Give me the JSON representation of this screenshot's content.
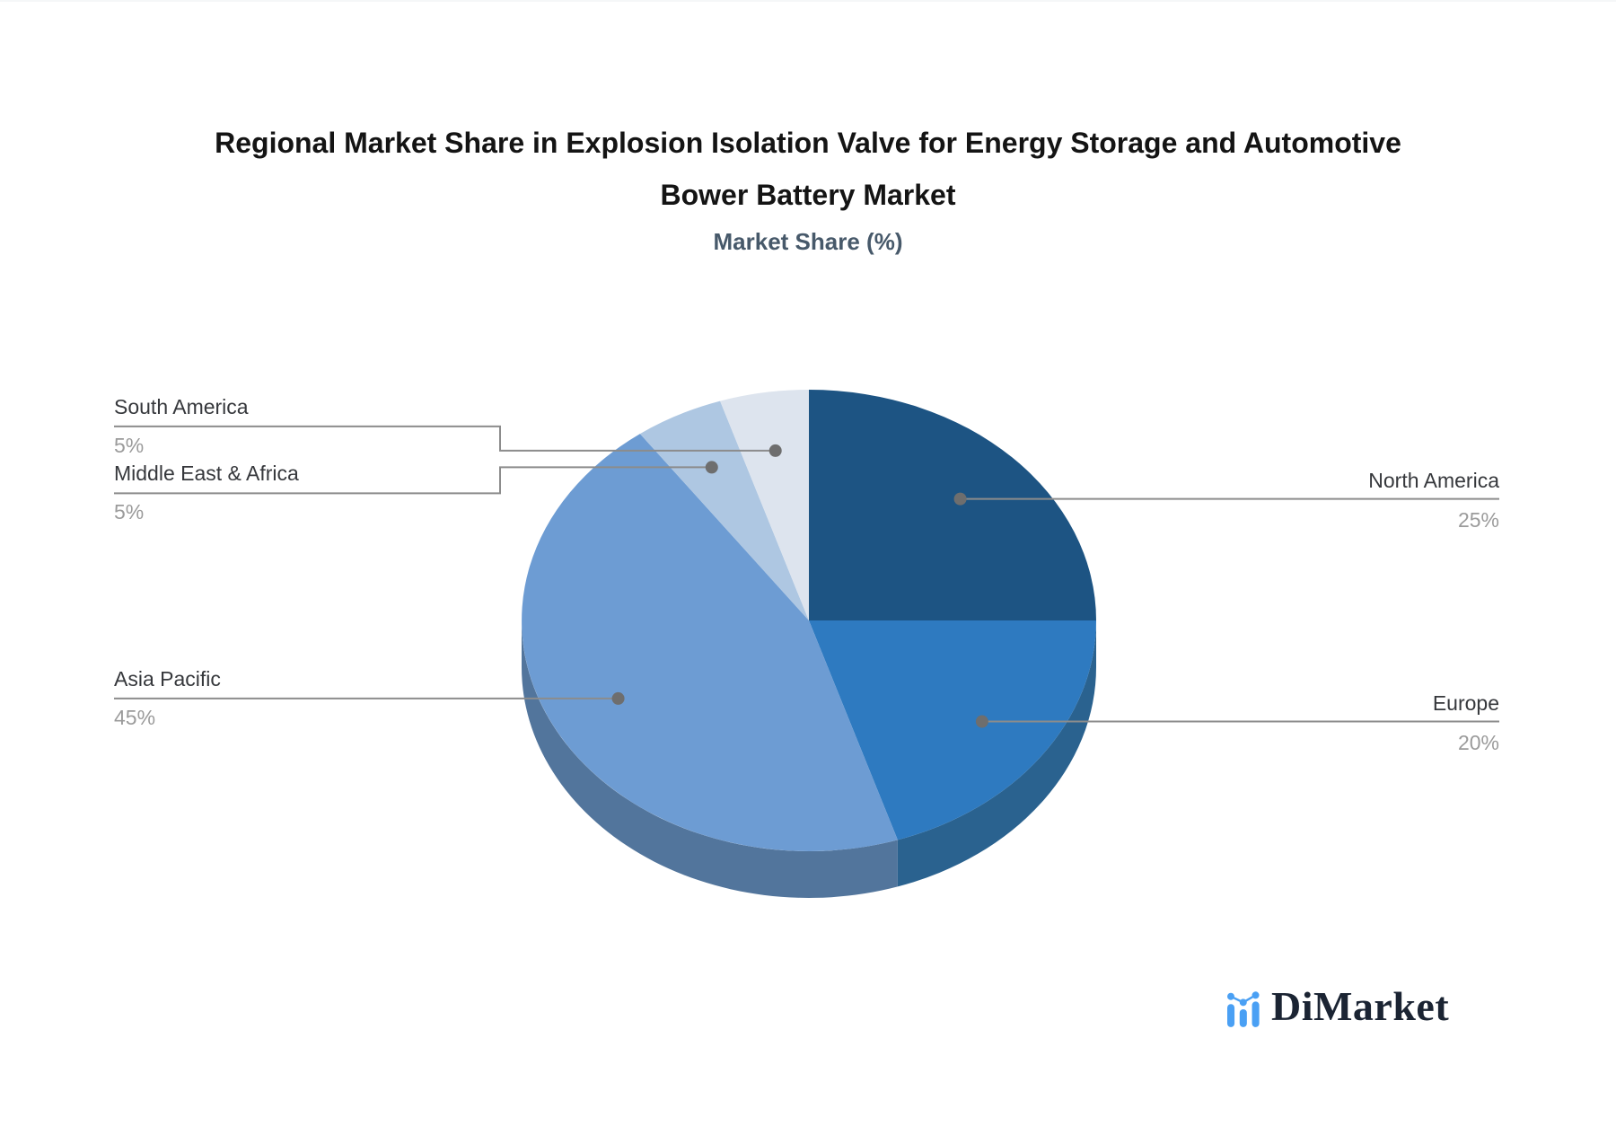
{
  "header": {
    "title_line1": "Regional Market Share in Explosion Isolation Valve for Energy Storage and Automotive",
    "title_line2": "Bower Battery Market",
    "subtitle": "Market Share (%)"
  },
  "chart_data": {
    "type": "pie",
    "style": "3d",
    "start_angle_deg": 0,
    "direction": "clockwise",
    "unit": "%",
    "categories": [
      "North America",
      "Europe",
      "Asia Pacific",
      "Middle East & Africa",
      "South America"
    ],
    "values": [
      25,
      20,
      45,
      5,
      5
    ],
    "slices": [
      {
        "label": "North America",
        "value": 25,
        "value_label": "25%",
        "color": "#1d5483",
        "side_color": "#174469"
      },
      {
        "label": "Europe",
        "value": 20,
        "value_label": "20%",
        "color": "#2e7ac0",
        "side_color": "#2a628f"
      },
      {
        "label": "Asia Pacific",
        "value": 45,
        "value_label": "45%",
        "color": "#6d9cd3",
        "side_color": "#52759c"
      },
      {
        "label": "Middle East & Africa",
        "value": 5,
        "value_label": "5%",
        "color": "#aec7e2",
        "side_color": "#8ba3bd"
      },
      {
        "label": "South America",
        "value": 5,
        "value_label": "5%",
        "color": "#dde4ee",
        "side_color": "#b4bfce"
      }
    ],
    "label_color": "#36383c",
    "value_color": "#9b9b9b",
    "connector_color": "#8c8c8c",
    "connector_dot_color": "#6e6e6e",
    "legend": "none"
  },
  "branding": {
    "logo_text": "DiMarket",
    "logo_icon": "bar-chart-icon",
    "logo_accent_color": "#4aa0f4",
    "logo_text_color": "#1b2433"
  }
}
